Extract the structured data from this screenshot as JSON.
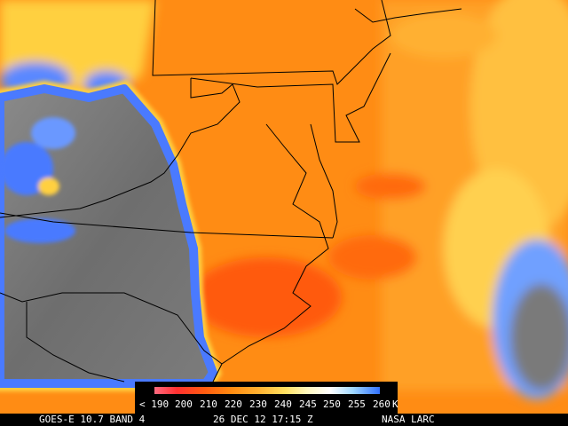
{
  "colorbar": {
    "labels": [
      "< 190",
      "200",
      "210",
      "220",
      "230",
      "240",
      "245",
      "250",
      "255",
      "260",
      "K"
    ]
  },
  "footer": {
    "satellite": "GOES-E 10.7 BAND 4",
    "timestamp": "26 DEC 12 17:15 Z",
    "source": "NASA LARC"
  }
}
